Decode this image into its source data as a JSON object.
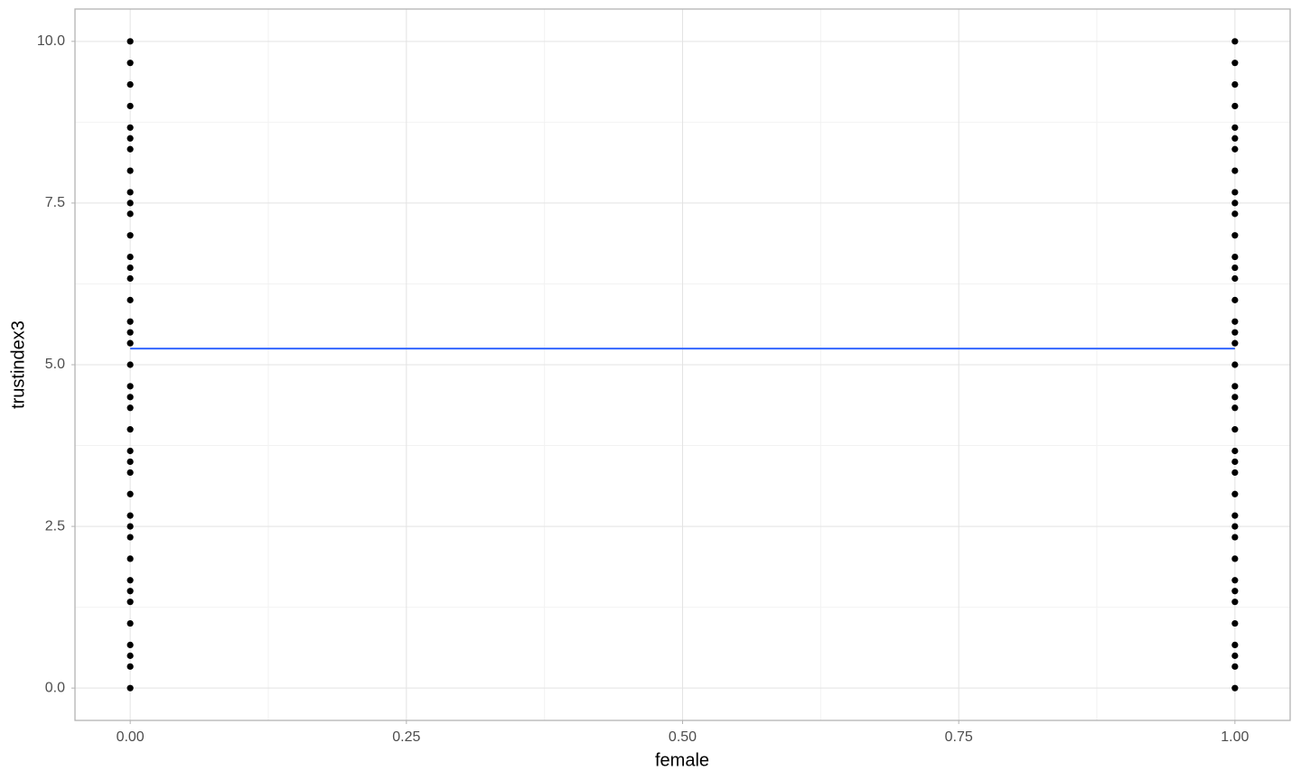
{
  "chart_data": {
    "type": "scatter",
    "xlabel": "female",
    "ylabel": "trustindex3",
    "xlim": [
      -0.05,
      1.05
    ],
    "ylim": [
      -0.5,
      10.5
    ],
    "xticks": [
      {
        "value": 0,
        "label": "0.00"
      },
      {
        "value": 0.25,
        "label": "0.25"
      },
      {
        "value": 0.5,
        "label": "0.50"
      },
      {
        "value": 0.75,
        "label": "0.75"
      },
      {
        "value": 1,
        "label": "1.00"
      }
    ],
    "yticks": [
      {
        "value": 0,
        "label": "0.0"
      },
      {
        "value": 2.5,
        "label": "2.5"
      },
      {
        "value": 5,
        "label": "5.0"
      },
      {
        "value": 7.5,
        "label": "7.5"
      },
      {
        "value": 10,
        "label": "10.0"
      }
    ],
    "grid": true,
    "series": [
      {
        "kind": "points",
        "color": "#000000",
        "x": [
          0,
          0,
          0,
          0,
          0,
          0,
          0,
          0,
          0,
          0,
          0,
          0,
          0,
          0,
          0,
          0,
          0,
          0,
          0,
          0,
          0,
          0,
          0,
          0,
          0,
          0,
          0,
          0,
          0,
          0,
          0,
          0,
          0,
          0,
          0,
          0,
          0,
          0,
          0,
          0,
          1,
          1,
          1,
          1,
          1,
          1,
          1,
          1,
          1,
          1,
          1,
          1,
          1,
          1,
          1,
          1,
          1,
          1,
          1,
          1,
          1,
          1,
          1,
          1,
          1,
          1,
          1,
          1,
          1,
          1,
          1,
          1,
          1,
          1,
          1,
          1,
          1,
          1,
          1,
          1
        ],
        "values": [
          0,
          0.333,
          0.5,
          0.667,
          1,
          1.333,
          1.5,
          1.667,
          2,
          2.333,
          2.5,
          2.667,
          3,
          3.333,
          3.5,
          3.667,
          4,
          4.333,
          4.5,
          4.667,
          5,
          5.333,
          5.5,
          5.667,
          6,
          6.333,
          6.5,
          6.667,
          7,
          7.333,
          7.5,
          7.667,
          8,
          8.333,
          8.5,
          8.667,
          9,
          9.333,
          9.667,
          10,
          0,
          0.333,
          0.5,
          0.667,
          1,
          1.333,
          1.5,
          1.667,
          2,
          2.333,
          2.5,
          2.667,
          3,
          3.333,
          3.5,
          3.667,
          4,
          4.333,
          4.5,
          4.667,
          5,
          5.333,
          5.5,
          5.667,
          6,
          6.333,
          6.5,
          6.667,
          7,
          7.333,
          7.5,
          7.667,
          8,
          8.333,
          8.5,
          8.667,
          9,
          9.333,
          9.667,
          10
        ]
      },
      {
        "kind": "line",
        "color": "#3366FF",
        "x": [
          0,
          1
        ],
        "values": [
          5.25,
          5.25
        ]
      }
    ]
  }
}
